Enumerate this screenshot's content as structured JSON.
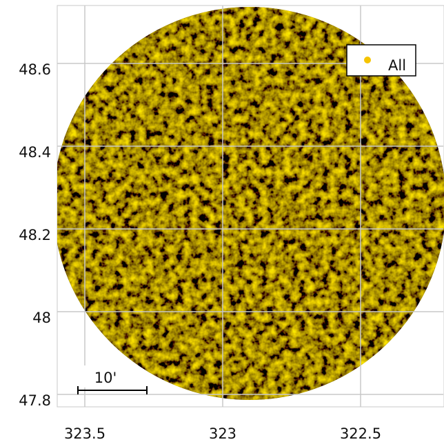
{
  "chart_data": {
    "type": "sky-map",
    "series": [
      {
        "name": "All",
        "color": "#f5c400"
      }
    ],
    "xlim": [
      323.6,
      322.2
    ],
    "xticks": [
      323.5,
      323,
      322.5
    ],
    "ylim": [
      47.77,
      48.74
    ],
    "yticks": [
      47.8,
      48,
      48.2,
      48.4,
      48.6
    ],
    "grid": true,
    "legend": "upper right",
    "annotations": [
      "10'"
    ]
  }
}
